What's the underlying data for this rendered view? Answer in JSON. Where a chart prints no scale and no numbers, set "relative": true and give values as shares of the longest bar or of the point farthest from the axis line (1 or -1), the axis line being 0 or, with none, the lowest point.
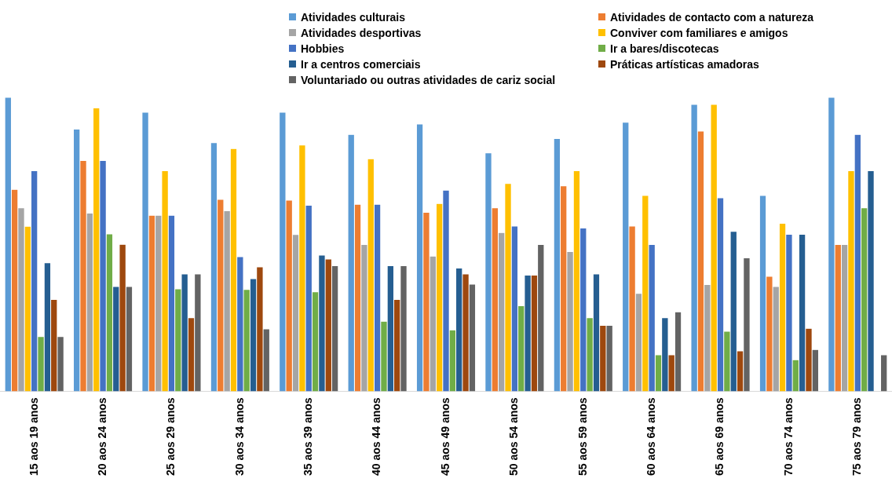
{
  "chart_data": {
    "type": "bar",
    "relative": true,
    "legend": "top",
    "grid": false,
    "categories": [
      "15 aos 19 anos",
      "20 aos 24 anos",
      "25 aos 29 anos",
      "30 aos 34 anos",
      "35 aos 39 anos",
      "40 aos 44 anos",
      "45 aos 49 anos",
      "50 aos 54 anos",
      "55 aos 59 anos",
      "60 aos 64 anos",
      "65 aos 69 anos",
      "70 aos 74 anos",
      "75 aos 79 anos"
    ],
    "series": [
      {
        "name": "Atividades culturais",
        "color": "#5b9bd5",
        "values": [
          1.0,
          0.892,
          0.949,
          0.846,
          0.949,
          0.874,
          0.909,
          0.811,
          0.86,
          0.915,
          0.976,
          0.666,
          1.0
        ]
      },
      {
        "name": "Atividades de contacto com a natureza",
        "color": "#ed7d31",
        "values": [
          0.687,
          0.785,
          0.599,
          0.653,
          0.65,
          0.636,
          0.609,
          0.624,
          0.699,
          0.562,
          0.885,
          0.391,
          0.499
        ]
      },
      {
        "name": "Atividades desportivas",
        "color": "#a5a5a5",
        "values": [
          0.624,
          0.606,
          0.599,
          0.614,
          0.533,
          0.499,
          0.46,
          0.54,
          0.475,
          0.333,
          0.363,
          0.356,
          0.499
        ]
      },
      {
        "name": "Conviver com familiares e amigos",
        "color": "#ffc000",
        "values": [
          0.561,
          0.964,
          0.75,
          0.826,
          0.838,
          0.791,
          0.639,
          0.707,
          0.75,
          0.666,
          0.976,
          0.571,
          0.75
        ]
      },
      {
        "name": "Hobbies",
        "color": "#4472c4",
        "values": [
          0.75,
          0.785,
          0.599,
          0.458,
          0.633,
          0.636,
          0.684,
          0.562,
          0.555,
          0.499,
          0.658,
          0.534,
          0.874
        ]
      },
      {
        "name": "Ir a bares/discotecas",
        "color": "#70ad47",
        "values": [
          0.186,
          0.535,
          0.348,
          0.346,
          0.338,
          0.238,
          0.209,
          0.291,
          0.25,
          0.124,
          0.204,
          0.107,
          0.624
        ]
      },
      {
        "name": "Ir a centros comerciais",
        "color": "#255e91",
        "values": [
          0.437,
          0.356,
          0.399,
          0.383,
          0.463,
          0.427,
          0.419,
          0.395,
          0.399,
          0.25,
          0.544,
          0.534,
          0.75
        ]
      },
      {
        "name": "Práticas artísticas amadoras",
        "color": "#9e480e",
        "values": [
          0.312,
          0.5,
          0.25,
          0.423,
          0.45,
          0.312,
          0.399,
          0.395,
          0.224,
          0.124,
          0.137,
          0.214,
          null
        ]
      },
      {
        "name": "Voluntariado ou outras atividades de cariz social",
        "color": "#636363",
        "values": [
          0.186,
          0.356,
          0.399,
          0.212,
          0.427,
          0.427,
          0.364,
          0.499,
          0.224,
          0.27,
          0.454,
          0.142,
          0.124
        ]
      }
    ]
  }
}
